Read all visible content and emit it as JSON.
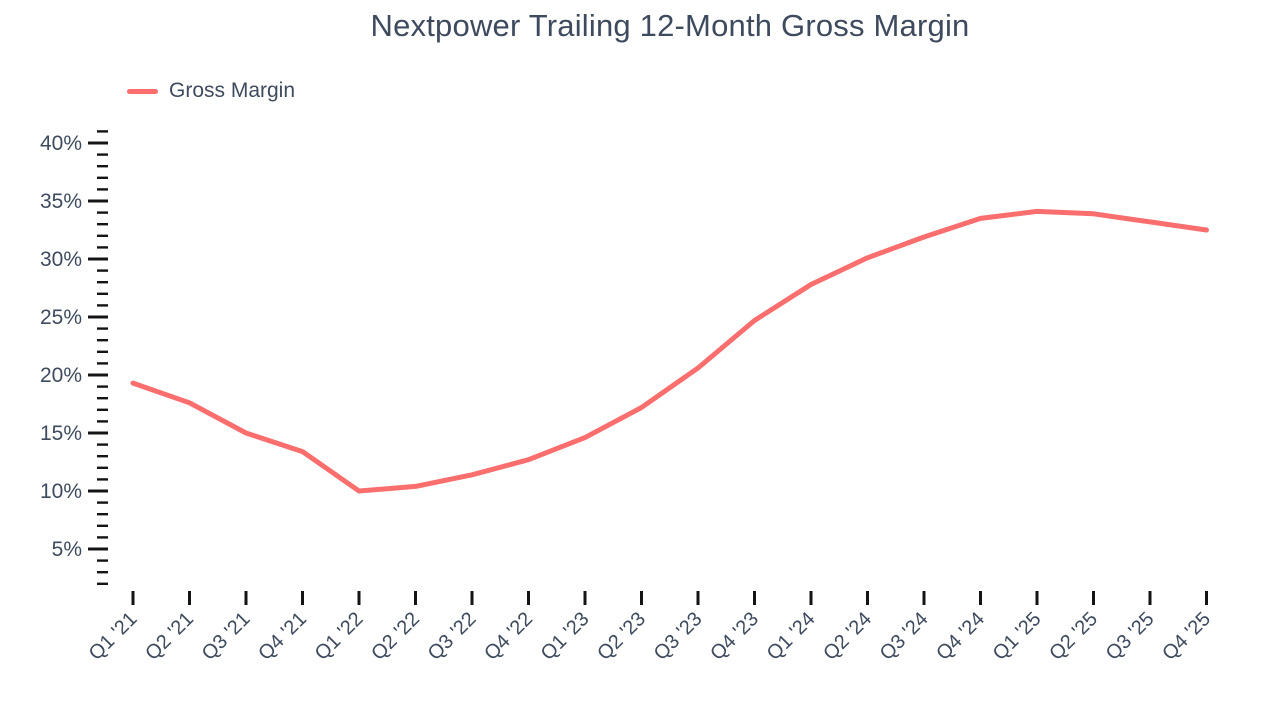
{
  "title": "Nextpower Trailing 12-Month Gross Margin",
  "legend": {
    "series_label": "Gross Margin"
  },
  "colors": {
    "line": "#fa6e6e",
    "text": "#3e4b5e",
    "tick": "#141414",
    "background": "#ffffff"
  },
  "chart_data": {
    "type": "line",
    "title": "Nextpower Trailing 12-Month Gross Margin",
    "categories": [
      "Q1 '21",
      "Q2 '21",
      "Q3 '21",
      "Q4 '21",
      "Q1 '22",
      "Q2 '22",
      "Q3 '22",
      "Q4 '22",
      "Q1 '23",
      "Q2 '23",
      "Q3 '23",
      "Q4 '23",
      "Q1 '24",
      "Q2 '24",
      "Q3 '24",
      "Q4 '24",
      "Q1 '25",
      "Q2 '25",
      "Q3 '25",
      "Q4 '25"
    ],
    "series": [
      {
        "name": "Gross Margin",
        "values": [
          19.3,
          17.6,
          15.0,
          13.4,
          10.0,
          10.4,
          11.4,
          12.7,
          14.6,
          17.2,
          20.6,
          24.7,
          27.8,
          30.1,
          31.9,
          33.5,
          34.1,
          33.9,
          33.2,
          32.5
        ]
      }
    ],
    "unit": "%",
    "xlabel": "",
    "ylabel": "",
    "y_axis": {
      "major_tick_step": 5,
      "minor_tick_step": 1,
      "tick_min": 2,
      "tick_max": 41,
      "major_tick_labels": [
        "5%",
        "10%",
        "15%",
        "20%",
        "25%",
        "30%",
        "35%",
        "40%"
      ]
    },
    "ylim": [
      2,
      41
    ],
    "grid": false,
    "legend_position": "top-left"
  }
}
